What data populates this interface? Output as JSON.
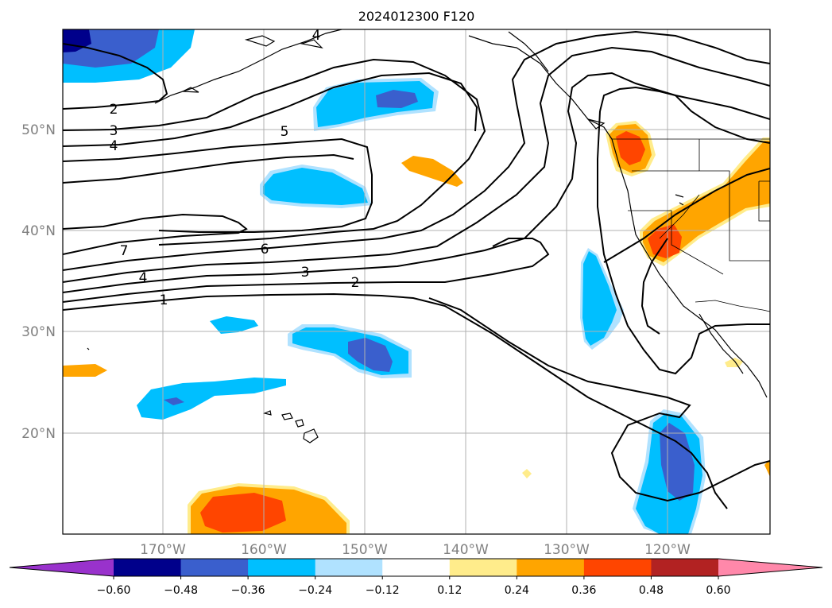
{
  "title": "2024012300 F120",
  "axes": {
    "lon_labels": [
      "170°W",
      "160°W",
      "150°W",
      "140°W",
      "130°W",
      "120°W"
    ],
    "lat_labels": [
      "50°N",
      "40°N",
      "30°N",
      "20°N"
    ],
    "lon_range": [
      -180,
      -110
    ],
    "lat_range": [
      10,
      60
    ],
    "grid": true
  },
  "contour_labels": [
    "4",
    "2",
    "3",
    "4",
    "5",
    "7",
    "6",
    "4",
    "3",
    "2",
    "1"
  ],
  "colorbar": {
    "ticks": [
      "−0.60",
      "−0.48",
      "−0.36",
      "−0.24",
      "−0.12",
      "0.12",
      "0.24",
      "0.36",
      "0.48",
      "0.60"
    ],
    "colors": [
      "#9932cc",
      "#00008b",
      "#3a5fcd",
      "#00bfff",
      "#b0e2ff",
      "#ffffff",
      "#ffec8b",
      "#ffa500",
      "#ff4500",
      "#b22222",
      "#ff88aa"
    ],
    "extend": "both"
  }
}
